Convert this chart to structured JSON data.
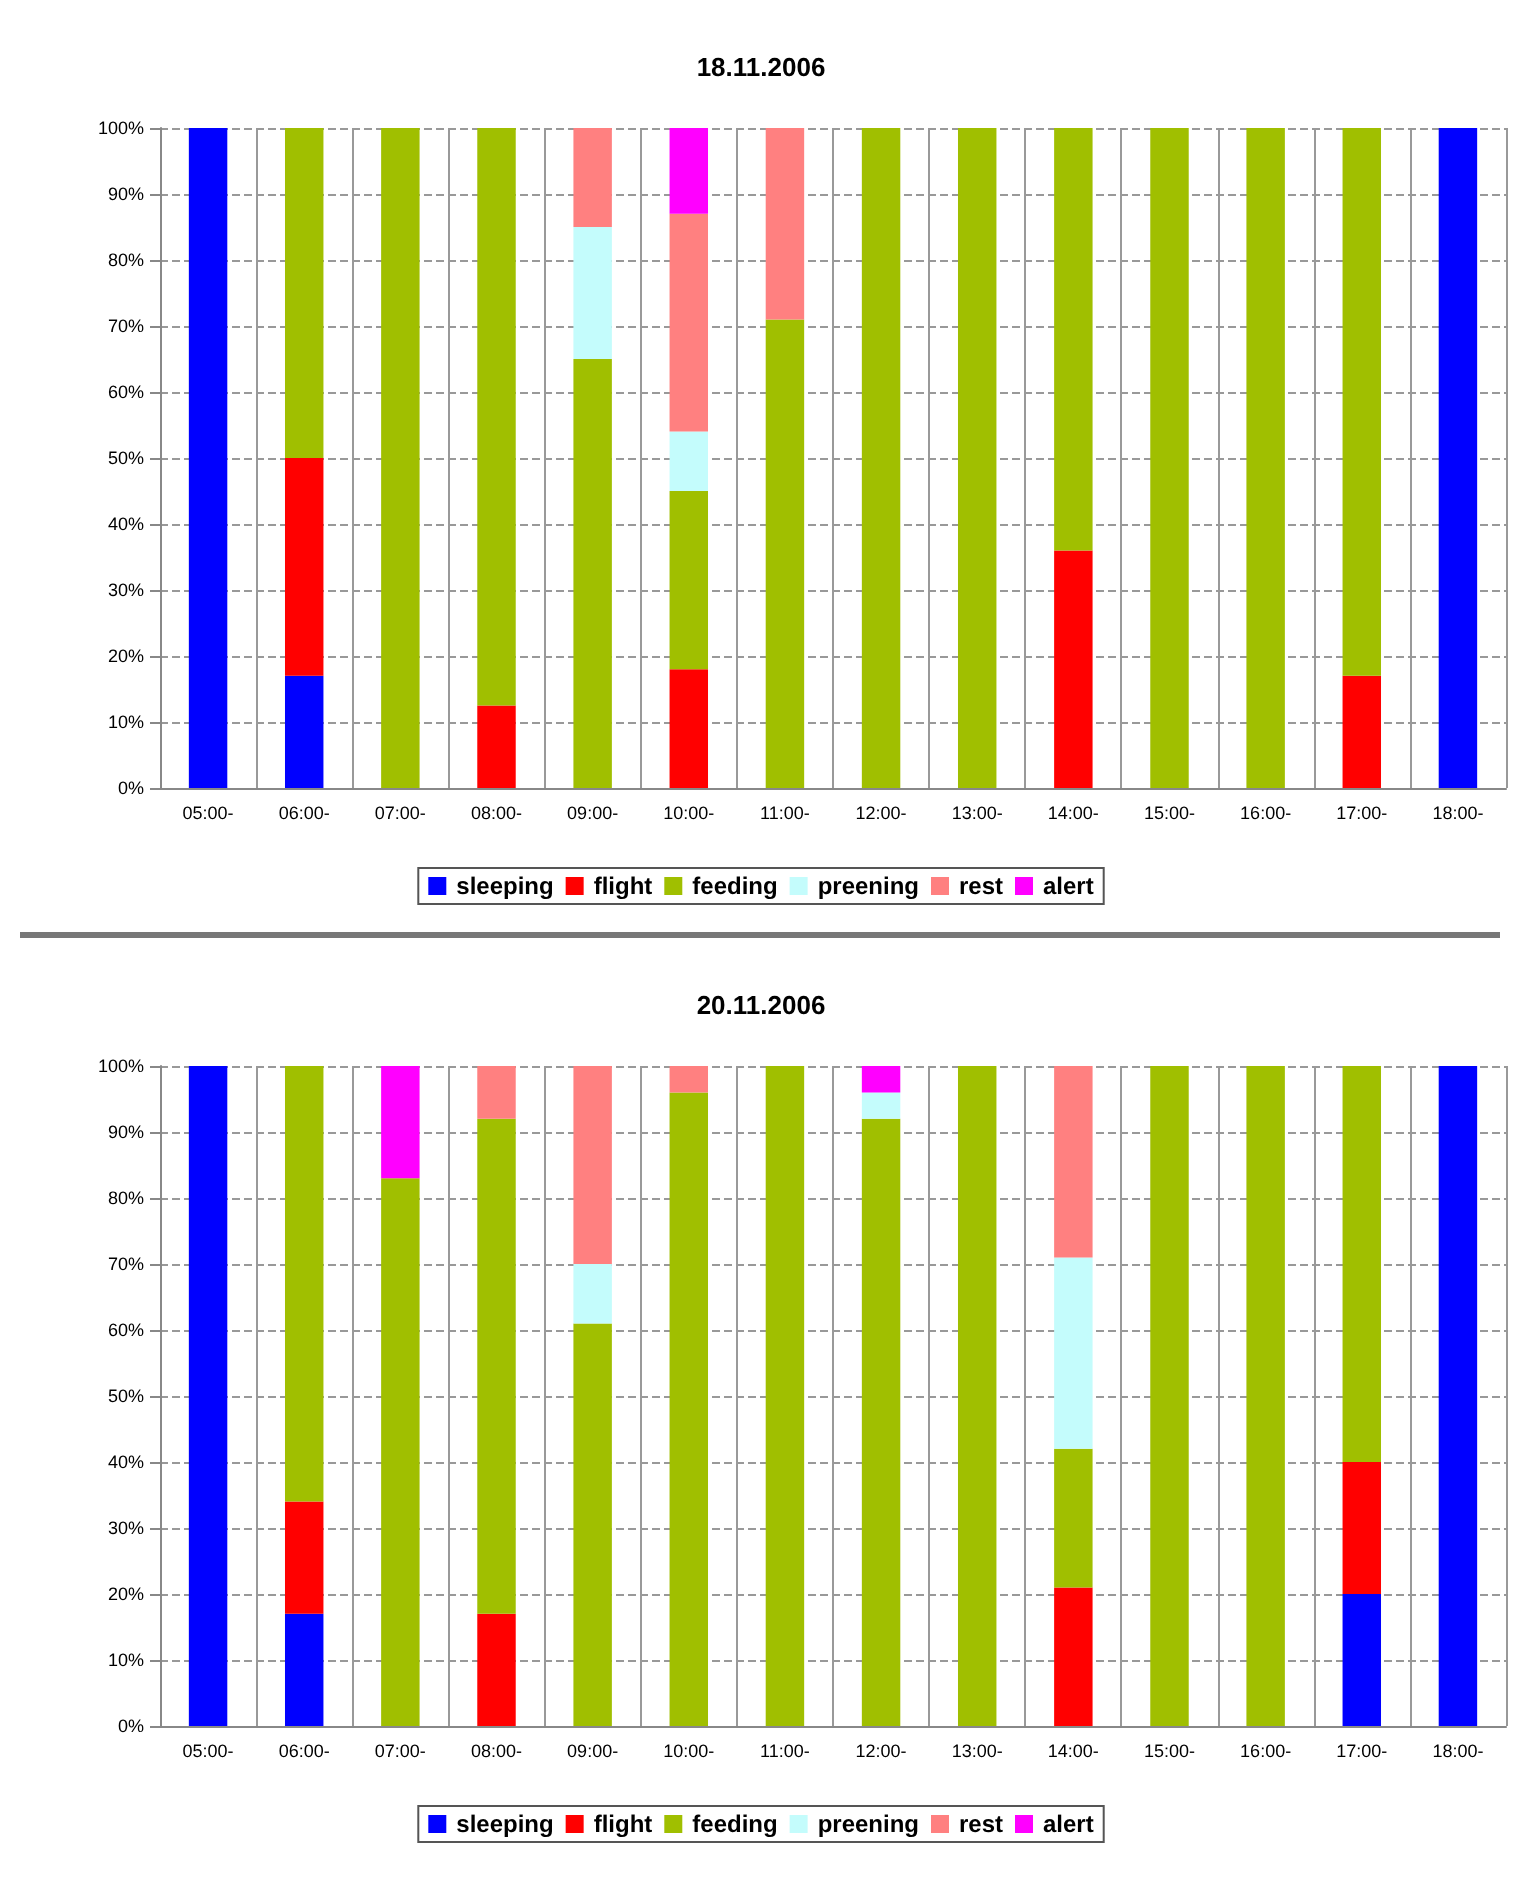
{
  "chart_data": [
    {
      "type": "bar",
      "title": "18.11.2006",
      "stacked": true,
      "grid": true,
      "legend": "bottom",
      "categories": [
        "05:00-",
        "06:00-",
        "07:00-",
        "08:00-",
        "09:00-",
        "10:00-",
        "11:00-",
        "12:00-",
        "13:00-",
        "14:00-",
        "15:00-",
        "16:00-",
        "17:00-",
        "18:00-"
      ],
      "ylim": [
        0,
        100
      ],
      "yticks": [
        {
          "value": 0,
          "label": "0%"
        },
        {
          "value": 10,
          "label": "10%"
        },
        {
          "value": 20,
          "label": "20%"
        },
        {
          "value": 30,
          "label": "30%"
        },
        {
          "value": 40,
          "label": "40%"
        },
        {
          "value": 50,
          "label": "50%"
        },
        {
          "value": 60,
          "label": "60%"
        },
        {
          "value": 70,
          "label": "70%"
        },
        {
          "value": 80,
          "label": "80%"
        },
        {
          "value": 90,
          "label": "90%"
        },
        {
          "value": 100,
          "label": "100%"
        }
      ],
      "series": [
        {
          "name": "sleeping",
          "color": "#0000ff",
          "values": [
            100,
            17,
            null,
            null,
            null,
            null,
            null,
            null,
            null,
            null,
            null,
            null,
            null,
            100
          ]
        },
        {
          "name": "flight",
          "color": "#ff0000",
          "values": [
            null,
            33,
            null,
            12.5,
            null,
            18,
            null,
            null,
            null,
            36,
            null,
            null,
            17,
            null
          ]
        },
        {
          "name": "feeding",
          "color": "#a0bf00",
          "values": [
            null,
            50,
            100,
            87.5,
            65,
            27,
            71,
            100,
            100,
            64,
            100,
            100,
            83,
            null
          ]
        },
        {
          "name": "preening",
          "color": "#c4fcfc",
          "values": [
            null,
            null,
            null,
            null,
            20,
            9,
            null,
            null,
            null,
            null,
            null,
            null,
            null,
            null
          ]
        },
        {
          "name": "rest",
          "color": "#ff8080",
          "values": [
            null,
            null,
            null,
            null,
            15,
            33,
            29,
            null,
            null,
            null,
            null,
            null,
            null,
            null
          ]
        },
        {
          "name": "alert",
          "color": "#ff00ff",
          "values": [
            null,
            null,
            null,
            null,
            null,
            13,
            null,
            null,
            null,
            null,
            null,
            null,
            null,
            null
          ]
        }
      ]
    },
    {
      "type": "bar",
      "title": "20.11.2006",
      "stacked": true,
      "grid": true,
      "legend": "bottom",
      "categories": [
        "05:00-",
        "06:00-",
        "07:00-",
        "08:00-",
        "09:00-",
        "10:00-",
        "11:00-",
        "12:00-",
        "13:00-",
        "14:00-",
        "15:00-",
        "16:00-",
        "17:00-",
        "18:00-"
      ],
      "ylim": [
        0,
        100
      ],
      "yticks": [
        {
          "value": 0,
          "label": "0%"
        },
        {
          "value": 10,
          "label": "10%"
        },
        {
          "value": 20,
          "label": "20%"
        },
        {
          "value": 30,
          "label": "30%"
        },
        {
          "value": 40,
          "label": "40%"
        },
        {
          "value": 50,
          "label": "50%"
        },
        {
          "value": 60,
          "label": "60%"
        },
        {
          "value": 70,
          "label": "70%"
        },
        {
          "value": 80,
          "label": "80%"
        },
        {
          "value": 90,
          "label": "90%"
        },
        {
          "value": 100,
          "label": "100%"
        }
      ],
      "series": [
        {
          "name": "sleeping",
          "color": "#0000ff",
          "values": [
            100,
            17,
            null,
            null,
            null,
            null,
            null,
            null,
            null,
            null,
            null,
            null,
            20,
            100
          ]
        },
        {
          "name": "flight",
          "color": "#ff0000",
          "values": [
            null,
            17,
            null,
            17,
            null,
            null,
            null,
            null,
            null,
            21,
            null,
            null,
            20,
            null
          ]
        },
        {
          "name": "feeding",
          "color": "#a0bf00",
          "values": [
            null,
            66,
            83,
            75,
            61,
            96,
            100,
            92,
            100,
            21,
            100,
            100,
            60,
            null
          ]
        },
        {
          "name": "preening",
          "color": "#c4fcfc",
          "values": [
            null,
            null,
            null,
            null,
            9,
            null,
            null,
            4,
            null,
            29,
            null,
            null,
            null,
            null
          ]
        },
        {
          "name": "rest",
          "color": "#ff8080",
          "values": [
            null,
            null,
            null,
            8,
            30,
            4,
            null,
            null,
            null,
            29,
            null,
            null,
            null,
            null
          ]
        },
        {
          "name": "alert",
          "color": "#ff00ff",
          "values": [
            null,
            null,
            17,
            null,
            null,
            null,
            null,
            4,
            null,
            null,
            null,
            null,
            null,
            null
          ]
        }
      ]
    }
  ]
}
